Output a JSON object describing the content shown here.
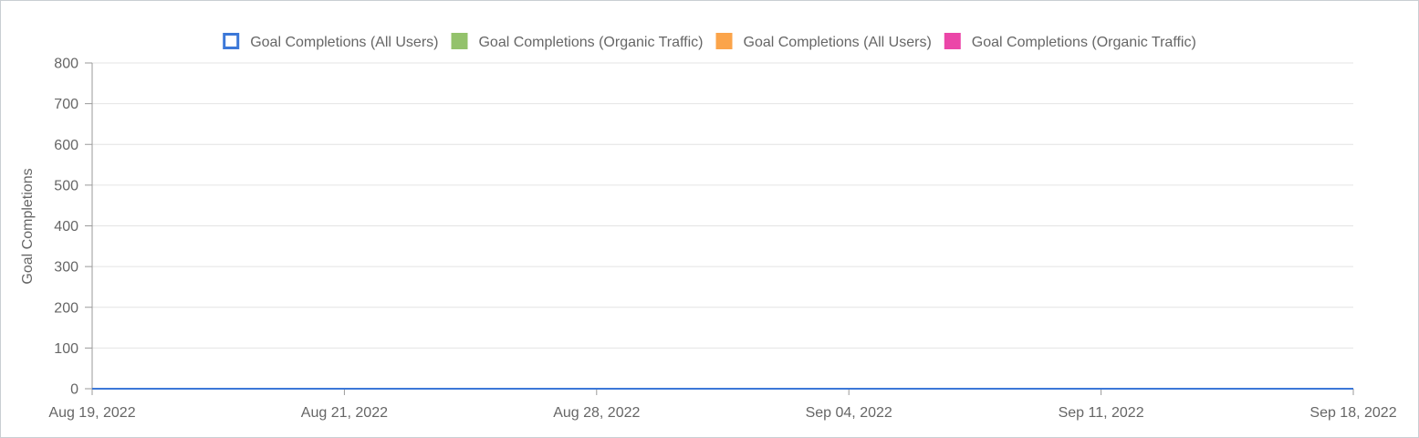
{
  "chart_data": {
    "type": "line",
    "title": "",
    "xlabel": "",
    "ylabel": "Goal Completions",
    "ylim": [
      0,
      800
    ],
    "y_ticks": [
      "0",
      "100",
      "200",
      "300",
      "400",
      "500",
      "600",
      "700",
      "800"
    ],
    "x_ticks": [
      "Aug 19, 2022",
      "Aug 21, 2022",
      "Aug 28, 2022",
      "Sep 04, 2022",
      "Sep 11, 2022",
      "Sep 18, 2022"
    ],
    "grid": true,
    "legend_position": "top-center",
    "x": [
      "Aug 19, 2022",
      "Aug 21, 2022",
      "Aug 28, 2022",
      "Sep 04, 2022",
      "Sep 11, 2022",
      "Sep 18, 2022"
    ],
    "series": [
      {
        "name": "Goal Completions (All Users)",
        "color": "#3c78d8",
        "marker": "hollow-square",
        "values": [
          0,
          0,
          0,
          0,
          0,
          0
        ]
      },
      {
        "name": "Goal Completions (Organic Traffic)",
        "color": "#93c26b",
        "marker": "filled-square",
        "values": [
          0,
          0,
          0,
          0,
          0,
          0
        ]
      },
      {
        "name": "Goal Completions (All Users)",
        "color": "#fba44a",
        "marker": "filled-square",
        "values": [
          0,
          0,
          0,
          0,
          0,
          0
        ]
      },
      {
        "name": "Goal Completions (Organic Traffic)",
        "color": "#eb46a8",
        "marker": "filled-square",
        "values": [
          0,
          0,
          0,
          0,
          0,
          0
        ]
      }
    ]
  }
}
